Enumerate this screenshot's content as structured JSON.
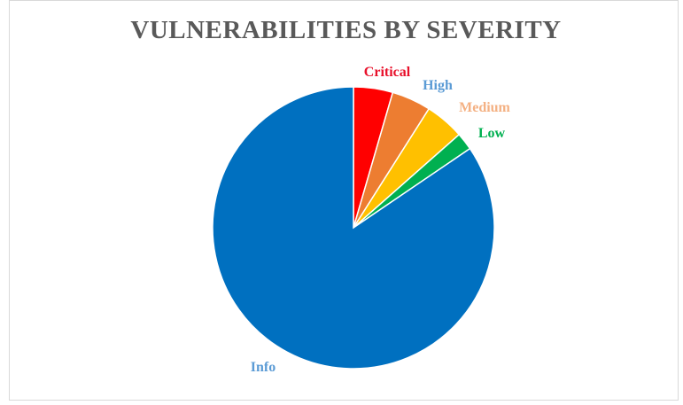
{
  "chart_data": {
    "type": "pie",
    "title": "VULNERABILITIES BY SEVERITY",
    "legend": "none",
    "slices": [
      {
        "label": "Critical",
        "value": 4.5,
        "color": "#ff0000",
        "label_color": "#e8102a"
      },
      {
        "label": "High",
        "value": 4.5,
        "color": "#ed7d31",
        "label_color": "#5b9bd5"
      },
      {
        "label": "Medium",
        "value": 4.5,
        "color": "#ffc000",
        "label_color": "#f4b183"
      },
      {
        "label": "Low",
        "value": 2.0,
        "color": "#00b050",
        "label_color": "#00b050"
      },
      {
        "label": "Info",
        "value": 84.5,
        "color": "#0070c0",
        "label_color": "#5b9bd5"
      }
    ]
  }
}
